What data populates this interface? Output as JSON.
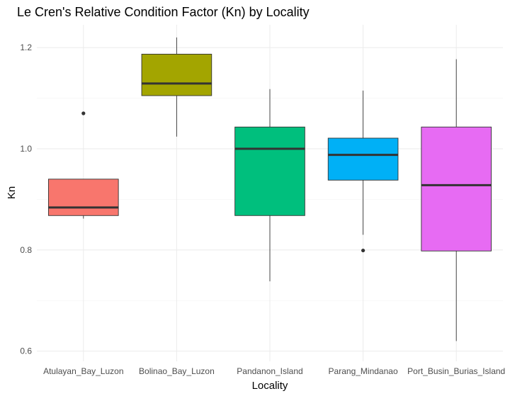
{
  "chart_data": {
    "type": "boxplot",
    "title": "Le Cren's Relative Condition Factor (Kn) by Locality",
    "xlabel": "Locality",
    "ylabel": "Kn",
    "ylim": [
      0.58,
      1.245
    ],
    "y_ticks": [
      0.6,
      0.8,
      1.0,
      1.2
    ],
    "y_tick_labels": [
      "0.6",
      "0.8",
      "1.0",
      "1.2"
    ],
    "grid": true,
    "legend": "none",
    "categories": [
      "Atulayan_Bay_Luzon",
      "Bolinao_Bay_Luzon",
      "Pandanon_Island",
      "Parang_Mindanao",
      "Port_Busin_Burias_Island"
    ],
    "boxes": [
      {
        "category": "Atulayan_Bay_Luzon",
        "whisker_low": 0.862,
        "q1": 0.868,
        "median": 0.884,
        "q3": 0.94,
        "whisker_high": 0.94,
        "outliers": [
          1.07
        ],
        "color": "#F8766D"
      },
      {
        "category": "Bolinao_Bay_Luzon",
        "whisker_low": 1.024,
        "q1": 1.105,
        "median": 1.129,
        "q3": 1.187,
        "whisker_high": 1.22,
        "outliers": [],
        "color": "#A3A500"
      },
      {
        "category": "Pandanon_Island",
        "whisker_low": 0.738,
        "q1": 0.868,
        "median": 1.0,
        "q3": 1.043,
        "whisker_high": 1.118,
        "outliers": [],
        "color": "#00BF7D"
      },
      {
        "category": "Parang_Mindanao",
        "whisker_low": 0.83,
        "q1": 0.938,
        "median": 0.988,
        "q3": 1.021,
        "whisker_high": 1.115,
        "outliers": [
          0.799
        ],
        "color": "#00B0F6"
      },
      {
        "category": "Port_Busin_Burias_Island",
        "whisker_low": 0.62,
        "q1": 0.798,
        "median": 0.928,
        "q3": 1.043,
        "whisker_high": 1.177,
        "outliers": [],
        "color": "#E76BF3"
      }
    ]
  }
}
